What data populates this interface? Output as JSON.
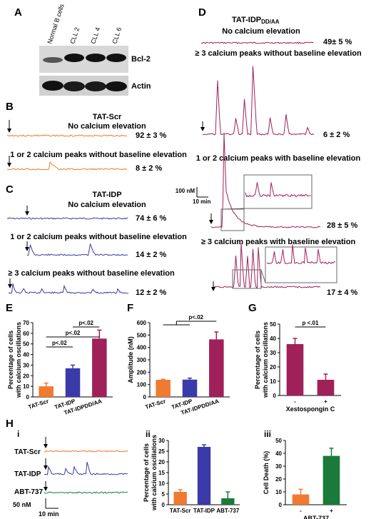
{
  "panels": {
    "A": {
      "letter": "A",
      "lanes": [
        "Normal B cells",
        "CLL 2",
        "CLL 4",
        "CLL 6"
      ],
      "bands": [
        "Bcl-2",
        "Actin"
      ]
    },
    "B": {
      "letter": "B",
      "heading": "TAT-Scr",
      "trace1_label": "No calcium elevation",
      "trace1_pct": "92 ± 3 %",
      "trace2_label": "1 or 2 calcium peaks without baseline elevation",
      "trace2_pct": "8 ± 2 %",
      "color": "#f07a30"
    },
    "C": {
      "letter": "C",
      "heading": "TAT-IDP",
      "trace1_label": "No calcium elevation",
      "trace1_pct": "74 ± 6 %",
      "trace2_label": "1 or 2 calcium peaks without baseline elevation",
      "trace2_pct": "14 ± 2 %",
      "trace3_label": "≥ 3 calcium peaks without baseline elevation",
      "trace3_pct": "12 ± 2 %",
      "color": "#3a3aa8"
    },
    "D": {
      "letter": "D",
      "heading_main": "TAT-IDP",
      "heading_sub": "DD/AA",
      "trace1_label": "No calcium elevation",
      "trace1_pct": "49± 5 %",
      "trace2_label": "≥ 3 calcium peaks without baseline elevation",
      "trace2_pct": "6 ± 2 %",
      "trace3_label": "1 or 2 calcium peaks with baseline elevation",
      "trace3_pct": "28 ± 5 %",
      "trace4_label": "≥ 3 calcium peaks with baseline elevation",
      "trace4_pct": "17 ± 4 %",
      "scale_y": "100 nM",
      "scale_x": "10 min",
      "color": "#a0205a"
    },
    "H": {
      "letter": "H",
      "sub_i": "i",
      "sub_ii": "ii",
      "sub_iii": "iii",
      "trace_labels": [
        "TAT-Scr",
        "TAT-IDP",
        "ABT-737"
      ],
      "scale_y": "50 nM",
      "scale_x": "10 min"
    }
  },
  "colors": {
    "scr": "#f07a30",
    "idp": "#3a3aa8",
    "ddaa": "#a0205a",
    "abt": "#1a7a3a"
  },
  "chart_data": [
    {
      "panel": "E",
      "type": "bar",
      "ylabel": "Percentage of cells with calcium oscillations",
      "categories": [
        "TAT-Scr",
        "TAT-IDP",
        "TAT-IDPDD/AA"
      ],
      "values": [
        10,
        27,
        55
      ],
      "errors": [
        3,
        3,
        8
      ],
      "ylim": [
        0,
        70
      ],
      "yticks": [
        0,
        10,
        20,
        30,
        40,
        50,
        60,
        70
      ],
      "significance": [
        "p<.02",
        "p<.02",
        "p<.02"
      ]
    },
    {
      "panel": "F",
      "type": "bar",
      "ylabel": "Amplitude (nM)",
      "categories": [
        "TAT-Scr",
        "TAT-IDP",
        "TAT-IDPDD/AA"
      ],
      "values": [
        138,
        140,
        465
      ],
      "errors": [
        5,
        12,
        60
      ],
      "ylim": [
        0,
        600
      ],
      "yticks": [
        0,
        100,
        200,
        300,
        400,
        500,
        600
      ],
      "significance": [
        "p<.02"
      ]
    },
    {
      "panel": "G",
      "type": "bar",
      "ylabel": "Percentage of cells with calcium oscillations",
      "xlabel": "Xestospongin C",
      "categories": [
        "-",
        "+"
      ],
      "values": [
        36,
        11
      ],
      "errors": [
        4,
        4
      ],
      "ylim": [
        0,
        50
      ],
      "yticks": [
        0,
        10,
        20,
        30,
        40,
        50
      ],
      "significance": [
        "p <.01"
      ]
    },
    {
      "panel": "Hii",
      "type": "bar",
      "ylabel": "Percentage of cells with calcium oscillations",
      "categories": [
        "TAT-Scr",
        "TAT-IDP",
        "ABT-737"
      ],
      "values": [
        6,
        27,
        3
      ],
      "errors": [
        1,
        1,
        3
      ],
      "ylim": [
        0,
        30
      ],
      "yticks": [
        0,
        5,
        10,
        15,
        20,
        25,
        30
      ]
    },
    {
      "panel": "Hiii",
      "type": "bar",
      "ylabel": "Cell Death (%)",
      "xlabel": "ABT-737",
      "categories": [
        "-",
        "+"
      ],
      "values": [
        8,
        38
      ],
      "errors": [
        4,
        6
      ],
      "ylim": [
        0,
        50
      ],
      "yticks": [
        0,
        10,
        20,
        30,
        40,
        50
      ]
    }
  ]
}
